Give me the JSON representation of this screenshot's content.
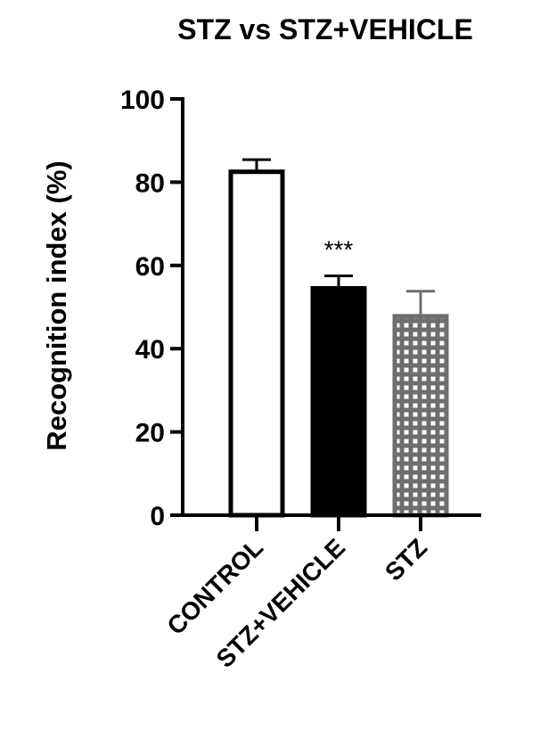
{
  "chart_data": {
    "type": "bar",
    "title": "STZ vs STZ+VEHICLE",
    "xlabel": "",
    "ylabel": "Recognition index (%)",
    "ylim": [
      0,
      100
    ],
    "yticks": [
      0,
      20,
      40,
      60,
      80,
      100
    ],
    "categories": [
      "CONTROL",
      "STZ+VEHICLE",
      "STZ"
    ],
    "values": [
      82.5,
      54.5,
      47.8
    ],
    "error_upper": [
      2.9,
      3.0,
      6.0
    ],
    "fills": [
      "none",
      "solid",
      "grid"
    ],
    "colors": [
      "#000000",
      "#000000",
      "#6e6e6e"
    ],
    "annotations": [
      {
        "category": "STZ+VEHICLE",
        "text": "***"
      }
    ],
    "grid": false,
    "legend": "none"
  }
}
